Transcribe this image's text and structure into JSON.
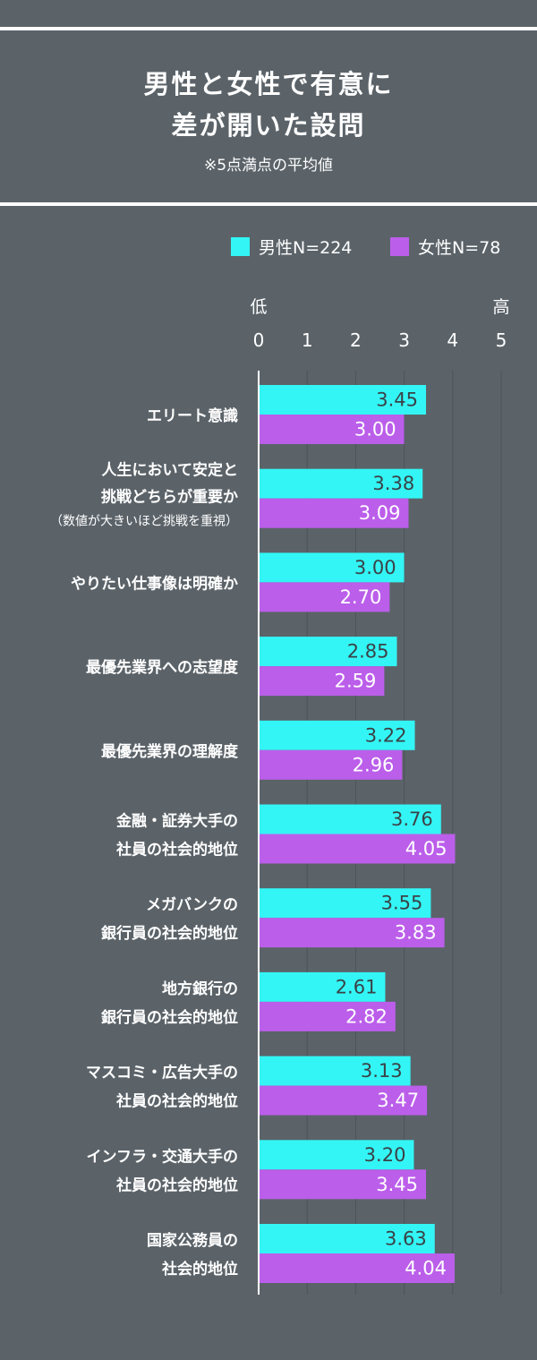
{
  "header": {
    "title_line1": "男性と女性で有意に",
    "title_line2": "差が開いた設問",
    "subtitle": "※5点満点の平均値"
  },
  "legend": {
    "male": "男性N=224",
    "female": "女性N=78"
  },
  "colors": {
    "background": "#5b6369",
    "male": "#33f5f5",
    "female": "#bb5eea",
    "text": "#ffffff",
    "male_value_text": "#3a4247",
    "grid": "#4c5358"
  },
  "chart_data": {
    "type": "bar",
    "orientation": "horizontal",
    "xlim": [
      0,
      5
    ],
    "x_ticks": [
      "0",
      "1",
      "2",
      "3",
      "4",
      "5"
    ],
    "x_low_label": "低",
    "x_high_label": "高",
    "grid": true,
    "legend_position": "top-right",
    "categories": [
      [
        "エリート意識"
      ],
      [
        "人生において安定と",
        "挑戦どちらが重要か",
        "（数値が大きいほど挑戦を重視）"
      ],
      [
        "やりたい仕事像は明確か"
      ],
      [
        "最優先業界への志望度"
      ],
      [
        "最優先業界の理解度"
      ],
      [
        "金融・証券大手の",
        "社員の社会的地位"
      ],
      [
        "メガバンクの",
        "銀行員の社会的地位"
      ],
      [
        "地方銀行の",
        "銀行員の社会的地位"
      ],
      [
        "マスコミ・広告大手の",
        "社員の社会的地位"
      ],
      [
        "インフラ・交通大手の",
        "社員の社会的地位"
      ],
      [
        "国家公務員の",
        "社会的地位"
      ]
    ],
    "series": [
      {
        "name": "男性N=224",
        "values": [
          3.45,
          3.38,
          3.0,
          2.85,
          3.22,
          3.76,
          3.55,
          2.61,
          3.13,
          3.2,
          3.63
        ],
        "labels": [
          "3.45",
          "3.38",
          "3.00",
          "2.85",
          "3.22",
          "3.76",
          "3.55",
          "2.61",
          "3.13",
          "3.20",
          "3.63"
        ]
      },
      {
        "name": "女性N=78",
        "values": [
          3.0,
          3.09,
          2.7,
          2.59,
          2.96,
          4.05,
          3.83,
          2.82,
          3.47,
          3.45,
          4.04
        ],
        "labels": [
          "3.00",
          "3.09",
          "2.70",
          "2.59",
          "2.96",
          "4.05",
          "3.83",
          "2.82",
          "3.47",
          "3.45",
          "4.04"
        ]
      }
    ]
  }
}
